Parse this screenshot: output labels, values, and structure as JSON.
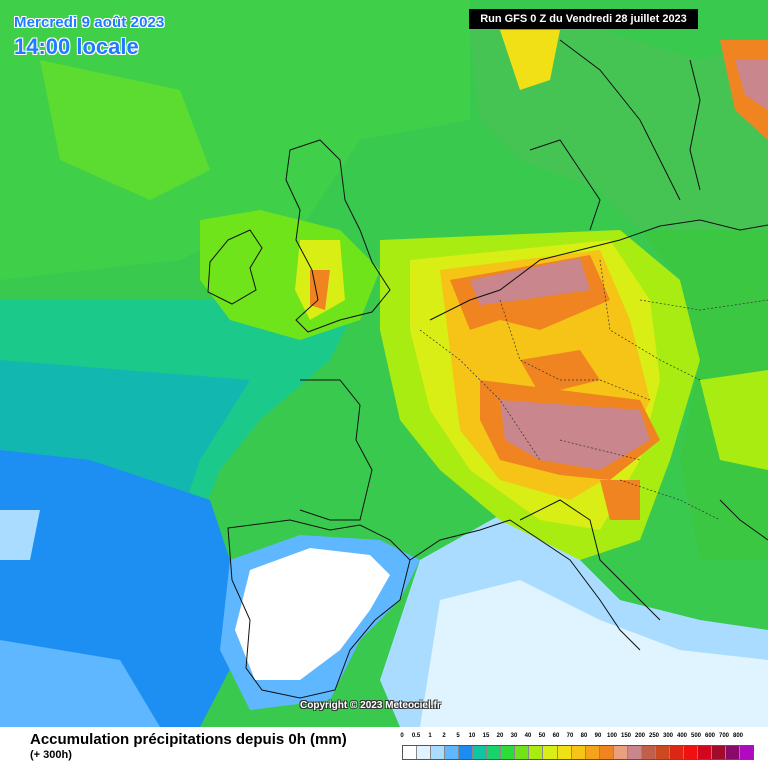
{
  "header": {
    "date": "Mercredi 9 août 2023",
    "local_time": "14:00 locale",
    "run": "Run GFS 0 Z du Vendredi 28 juillet 2023"
  },
  "copyright": "Copyright © 2023 Meteociel.fr",
  "legend": {
    "title": "Accumulation précipitations depuis 0h (mm)",
    "subtitle": "(+ 300h)",
    "classes": [
      {
        "label": "0",
        "color": "#ffffff"
      },
      {
        "label": "0.5",
        "color": "#dff4ff"
      },
      {
        "label": "1",
        "color": "#a9dcff"
      },
      {
        "label": "2",
        "color": "#5fb8ff"
      },
      {
        "label": "5",
        "color": "#1c8cf0"
      },
      {
        "label": "10",
        "color": "#0fc6a0"
      },
      {
        "label": "15",
        "color": "#18d36a"
      },
      {
        "label": "20",
        "color": "#2cdc3a"
      },
      {
        "label": "30",
        "color": "#6fe41a"
      },
      {
        "label": "40",
        "color": "#a9ec12"
      },
      {
        "label": "50",
        "color": "#d8ee14"
      },
      {
        "label": "60",
        "color": "#f2e016"
      },
      {
        "label": "70",
        "color": "#f5c417"
      },
      {
        "label": "80",
        "color": "#f4a31a"
      },
      {
        "label": "90",
        "color": "#ef8420"
      },
      {
        "label": "100",
        "color": "#e8a07e"
      },
      {
        "label": "150",
        "color": "#c9868c"
      },
      {
        "label": "200",
        "color": "#c05f4a"
      },
      {
        "label": "250",
        "color": "#cc4a22"
      },
      {
        "label": "300",
        "color": "#dd2614"
      },
      {
        "label": "400",
        "color": "#f01010"
      },
      {
        "label": "500",
        "color": "#d4061e"
      },
      {
        "label": "600",
        "color": "#a20b2b"
      },
      {
        "label": "700",
        "color": "#8a0a6a"
      },
      {
        "label": "800",
        "color": "#b00ac0"
      }
    ]
  }
}
